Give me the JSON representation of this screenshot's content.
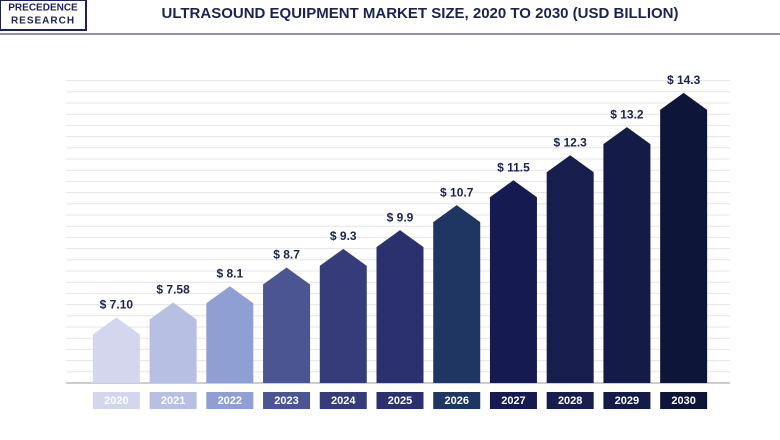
{
  "logo": {
    "line1": "PRECEDENCE",
    "line2": "RESEARCH"
  },
  "chart_data": {
    "type": "bar",
    "title": "ULTRASOUND EQUIPMENT MARKET SIZE, 2020 TO 2030 (USD BILLION)",
    "categories": [
      "2020",
      "2021",
      "2022",
      "2023",
      "2024",
      "2025",
      "2026",
      "2027",
      "2028",
      "2029",
      "2030"
    ],
    "values": [
      7.1,
      7.58,
      8.1,
      8.7,
      9.3,
      9.9,
      10.7,
      11.5,
      12.3,
      13.2,
      14.3
    ],
    "value_labels": [
      "$ 7.10",
      "$ 7.58",
      "$ 8.1",
      "$ 8.7",
      "$ 9.3",
      "$ 9.9",
      "$ 10.7",
      "$ 11.5",
      "$ 12.3",
      "$ 13.2",
      "$ 14.3"
    ],
    "colors": [
      "#d3d6ec",
      "#b7c0e2",
      "#8f9fd3",
      "#4b5592",
      "#363c7a",
      "#2b306f",
      "#1f3562",
      "#151b50",
      "#171e4d",
      "#131b46",
      "#0d1538"
    ],
    "ylim": [
      5,
      15
    ]
  }
}
